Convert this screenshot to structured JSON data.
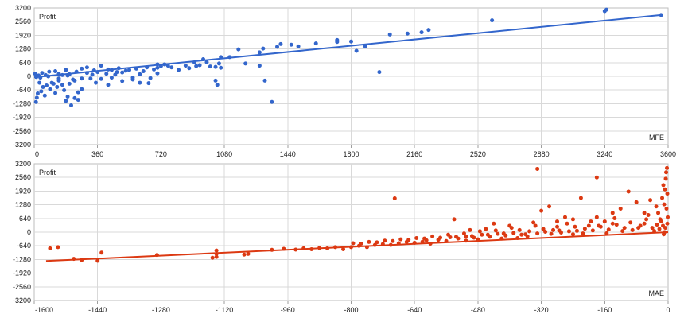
{
  "chart_data": [
    {
      "type": "scatter",
      "title": "",
      "ylabel": "Profit",
      "xlabel": "MFE",
      "color": "#3366cc",
      "xlim": [
        0,
        3600
      ],
      "ylim": [
        -3200,
        3200
      ],
      "xticks": [
        "0",
        "360",
        "720",
        "1080",
        "1440",
        "1800",
        "2160",
        "2520",
        "2880",
        "3240",
        "3600"
      ],
      "yticks": [
        "3200",
        "2560",
        "1920",
        "1280",
        "640",
        "0",
        "-640",
        "-1280",
        "-1920",
        "-2560",
        "-3200"
      ],
      "grid": true,
      "trendline": {
        "x": [
          0,
          3560
        ],
        "y": [
          -40,
          2870
        ]
      },
      "points": [
        [
          3240,
          3050
        ],
        [
          3250,
          3120
        ],
        [
          3560,
          2870
        ],
        [
          2600,
          2620
        ],
        [
          2240,
          2170
        ],
        [
          2200,
          2060
        ],
        [
          2120,
          2000
        ],
        [
          2020,
          1960
        ],
        [
          1800,
          1630
        ],
        [
          1720,
          1700
        ],
        [
          1720,
          1610
        ],
        [
          1600,
          1540
        ],
        [
          1500,
          1400
        ],
        [
          1460,
          1480
        ],
        [
          1400,
          1510
        ],
        [
          1380,
          1380
        ],
        [
          1300,
          1300
        ],
        [
          1280,
          1120
        ],
        [
          1880,
          1400
        ],
        [
          1830,
          1190
        ],
        [
          1960,
          200
        ],
        [
          1160,
          1260
        ],
        [
          1060,
          900
        ],
        [
          1110,
          900
        ],
        [
          1050,
          600
        ],
        [
          1060,
          400
        ],
        [
          1030,
          440
        ],
        [
          1280,
          500
        ],
        [
          960,
          800
        ],
        [
          910,
          650
        ],
        [
          860,
          500
        ],
        [
          920,
          480
        ],
        [
          1030,
          -200
        ],
        [
          1040,
          -400
        ],
        [
          1350,
          -1200
        ],
        [
          1310,
          -200
        ],
        [
          1200,
          600
        ],
        [
          760,
          500
        ],
        [
          720,
          480
        ],
        [
          680,
          320
        ],
        [
          600,
          100
        ],
        [
          560,
          -60
        ],
        [
          520,
          260
        ],
        [
          480,
          380
        ],
        [
          440,
          -60
        ],
        [
          420,
          320
        ],
        [
          380,
          500
        ],
        [
          360,
          200
        ],
        [
          320,
          -100
        ],
        [
          300,
          420
        ],
        [
          270,
          360
        ],
        [
          240,
          220
        ],
        [
          220,
          -150
        ],
        [
          200,
          100
        ],
        [
          180,
          300
        ],
        [
          160,
          -400
        ],
        [
          140,
          -200
        ],
        [
          120,
          240
        ],
        [
          100,
          -300
        ],
        [
          90,
          -600
        ],
        [
          60,
          -900
        ],
        [
          40,
          -700
        ],
        [
          30,
          -300
        ],
        [
          20,
          -800
        ],
        [
          10,
          -1200
        ],
        [
          15,
          -1000
        ],
        [
          50,
          -500
        ],
        [
          80,
          0
        ],
        [
          110,
          -350
        ],
        [
          130,
          -500
        ],
        [
          170,
          -650
        ],
        [
          200,
          -350
        ],
        [
          230,
          -200
        ],
        [
          270,
          -100
        ],
        [
          330,
          80
        ],
        [
          410,
          120
        ],
        [
          470,
          200
        ],
        [
          540,
          300
        ],
        [
          620,
          240
        ],
        [
          650,
          -320
        ],
        [
          700,
          400
        ],
        [
          740,
          560
        ],
        [
          780,
          420
        ],
        [
          820,
          300
        ],
        [
          880,
          380
        ],
        [
          940,
          520
        ],
        [
          980,
          660
        ],
        [
          1000,
          460
        ],
        [
          560,
          -150
        ],
        [
          600,
          -300
        ],
        [
          660,
          -80
        ],
        [
          700,
          140
        ],
        [
          420,
          -400
        ],
        [
          380,
          -120
        ],
        [
          250,
          -750
        ],
        [
          270,
          -600
        ],
        [
          120,
          -780
        ],
        [
          190,
          -950
        ],
        [
          230,
          -1020
        ],
        [
          250,
          -1100
        ],
        [
          210,
          -1360
        ],
        [
          180,
          -1150
        ],
        [
          70,
          -430
        ],
        [
          35,
          -60
        ],
        [
          5,
          120
        ],
        [
          12,
          -30
        ],
        [
          25,
          40
        ],
        [
          45,
          160
        ],
        [
          65,
          60
        ],
        [
          85,
          220
        ],
        [
          140,
          120
        ],
        [
          190,
          40
        ],
        [
          300,
          160
        ],
        [
          340,
          280
        ],
        [
          460,
          80
        ],
        [
          500,
          180
        ],
        [
          580,
          360
        ],
        [
          640,
          420
        ],
        [
          700,
          560
        ],
        [
          500,
          -220
        ],
        [
          350,
          -300
        ],
        [
          440,
          300
        ],
        [
          140,
          -100
        ],
        [
          160,
          60
        ]
      ]
    },
    {
      "type": "scatter",
      "title": "",
      "ylabel": "Profit",
      "xlabel": "MAE",
      "color": "#dc3912",
      "xlim": [
        -1600,
        0
      ],
      "ylim": [
        -3200,
        3200
      ],
      "xticks": [
        "-1600",
        "-1440",
        "-1280",
        "-1120",
        "-960",
        "-800",
        "-640",
        "-480",
        "-320",
        "-160",
        "0"
      ],
      "yticks": [
        "3200",
        "2560",
        "1920",
        "1280",
        "640",
        "0",
        "-640",
        "-1280",
        "-1920",
        "-2560",
        "-3200"
      ],
      "grid": true,
      "trendline": {
        "x": [
          -1570,
          0
        ],
        "y": [
          -1350,
          0
        ]
      },
      "points": [
        [
          -1540,
          -700
        ],
        [
          -1560,
          -760
        ],
        [
          -1500,
          -1250
        ],
        [
          -1480,
          -1300
        ],
        [
          -1440,
          -1340
        ],
        [
          -1430,
          -960
        ],
        [
          -1290,
          -1070
        ],
        [
          -1140,
          -1020
        ],
        [
          -1140,
          -1160
        ],
        [
          -1150,
          -1200
        ],
        [
          -1140,
          -860
        ],
        [
          -1070,
          -1050
        ],
        [
          -1060,
          -1020
        ],
        [
          -970,
          -780
        ],
        [
          -940,
          -820
        ],
        [
          -900,
          -800
        ],
        [
          -860,
          -760
        ],
        [
          -820,
          -800
        ],
        [
          -800,
          -700
        ],
        [
          -760,
          -700
        ],
        [
          -700,
          -600
        ],
        [
          -690,
          1580
        ],
        [
          -640,
          -500
        ],
        [
          -600,
          -540
        ],
        [
          -560,
          -420
        ],
        [
          -540,
          600
        ],
        [
          -510,
          -400
        ],
        [
          -480,
          -340
        ],
        [
          -440,
          400
        ],
        [
          -420,
          -300
        ],
        [
          -380,
          -280
        ],
        [
          -360,
          -100
        ],
        [
          -330,
          2960
        ],
        [
          -320,
          1000
        ],
        [
          -300,
          1200
        ],
        [
          -280,
          500
        ],
        [
          -240,
          600
        ],
        [
          -220,
          1600
        ],
        [
          -180,
          2560
        ],
        [
          -140,
          900
        ],
        [
          -120,
          1100
        ],
        [
          -100,
          1900
        ],
        [
          -80,
          1400
        ],
        [
          -60,
          400
        ],
        [
          -50,
          800
        ],
        [
          -30,
          1200
        ],
        [
          -20,
          600
        ],
        [
          -10,
          1300
        ],
        [
          -5,
          2800
        ],
        [
          -3,
          3000
        ],
        [
          -2,
          1800
        ],
        [
          -8,
          2000
        ],
        [
          -15,
          1600
        ],
        [
          -25,
          900
        ],
        [
          -40,
          200
        ],
        [
          -70,
          300
        ],
        [
          -90,
          100
        ],
        [
          -110,
          200
        ],
        [
          -130,
          350
        ],
        [
          -150,
          120
        ],
        [
          -170,
          250
        ],
        [
          -190,
          80
        ],
        [
          -210,
          160
        ],
        [
          -230,
          60
        ],
        [
          -250,
          40
        ],
        [
          -270,
          -20
        ],
        [
          -290,
          100
        ],
        [
          -310,
          20
        ],
        [
          -330,
          -60
        ],
        [
          -350,
          40
        ],
        [
          -370,
          -120
        ],
        [
          -390,
          -40
        ],
        [
          -410,
          -160
        ],
        [
          -430,
          -80
        ],
        [
          -450,
          -220
        ],
        [
          -470,
          -120
        ],
        [
          -490,
          -260
        ],
        [
          -510,
          -200
        ],
        [
          -530,
          -300
        ],
        [
          -550,
          -240
        ],
        [
          -580,
          -360
        ],
        [
          -610,
          -380
        ],
        [
          -620,
          -450
        ],
        [
          -660,
          -460
        ],
        [
          -680,
          -520
        ],
        [
          -720,
          -560
        ],
        [
          -740,
          -600
        ],
        [
          -780,
          -640
        ],
        [
          -840,
          -700
        ],
        [
          -880,
          -740
        ],
        [
          -920,
          -760
        ],
        [
          -1000,
          -830
        ],
        [
          -160,
          500
        ],
        [
          -200,
          300
        ],
        [
          -260,
          700
        ],
        [
          -340,
          450
        ],
        [
          -400,
          300
        ],
        [
          -460,
          150
        ],
        [
          -500,
          100
        ],
        [
          -240,
          -100
        ],
        [
          -280,
          250
        ],
        [
          -180,
          700
        ],
        [
          -140,
          400
        ],
        [
          -60,
          900
        ],
        [
          -45,
          1500
        ],
        [
          -12,
          2200
        ],
        [
          -6,
          2500
        ],
        [
          -4,
          1100
        ],
        [
          -1,
          700
        ],
        [
          -2,
          400
        ],
        [
          -7,
          200
        ],
        [
          -9,
          0
        ],
        [
          -11,
          -100
        ],
        [
          -13,
          300
        ],
        [
          -17,
          500
        ],
        [
          -22,
          150
        ],
        [
          -28,
          350
        ],
        [
          -35,
          50
        ],
        [
          -55,
          600
        ],
        [
          -75,
          200
        ],
        [
          -95,
          450
        ],
        [
          -115,
          50
        ],
        [
          -135,
          650
        ],
        [
          -155,
          -50
        ],
        [
          -175,
          300
        ],
        [
          -195,
          500
        ],
        [
          -215,
          -60
        ],
        [
          -235,
          250
        ],
        [
          -255,
          400
        ],
        [
          -275,
          80
        ],
        [
          -295,
          -80
        ],
        [
          -315,
          150
        ],
        [
          -335,
          300
        ],
        [
          -355,
          -200
        ],
        [
          -375,
          100
        ],
        [
          -395,
          200
        ],
        [
          -415,
          -60
        ],
        [
          -435,
          80
        ],
        [
          -455,
          -120
        ],
        [
          -475,
          40
        ],
        [
          -495,
          -180
        ],
        [
          -515,
          -60
        ],
        [
          -535,
          -220
        ],
        [
          -555,
          -120
        ],
        [
          -575,
          -260
        ],
        [
          -595,
          -200
        ],
        [
          -615,
          -300
        ],
        [
          -635,
          -280
        ],
        [
          -655,
          -360
        ],
        [
          -675,
          -340
        ],
        [
          -695,
          -420
        ],
        [
          -715,
          -400
        ],
        [
          -735,
          -480
        ],
        [
          -755,
          -460
        ],
        [
          -775,
          -540
        ],
        [
          -795,
          -520
        ]
      ]
    }
  ]
}
